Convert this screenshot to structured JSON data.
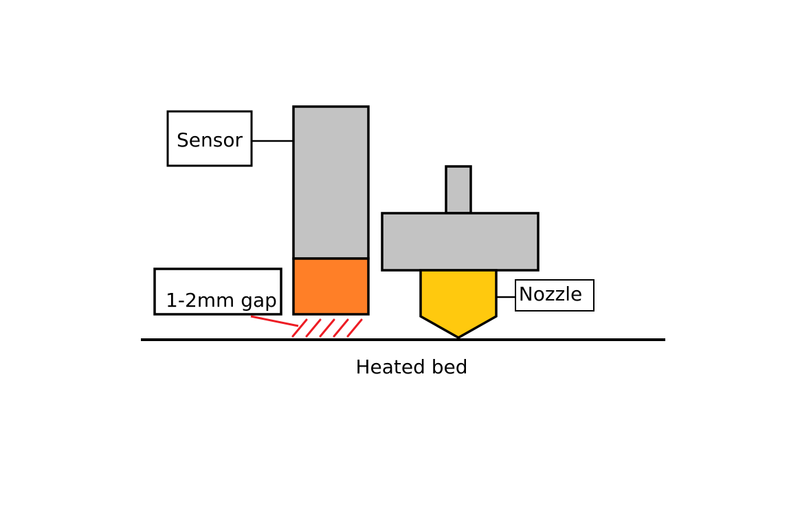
{
  "labels": {
    "sensor": "Sensor",
    "gap": "1-2mm gap",
    "nozzle": "Nozzle",
    "bed": "Heated bed"
  },
  "colors": {
    "body_gray": "#c3c3c3",
    "sensor_tip": "#ff7f27",
    "nozzle_tip": "#ffc90e",
    "gap_hatch": "#ed1c24",
    "outline": "#000000",
    "background": "#ffffff"
  }
}
